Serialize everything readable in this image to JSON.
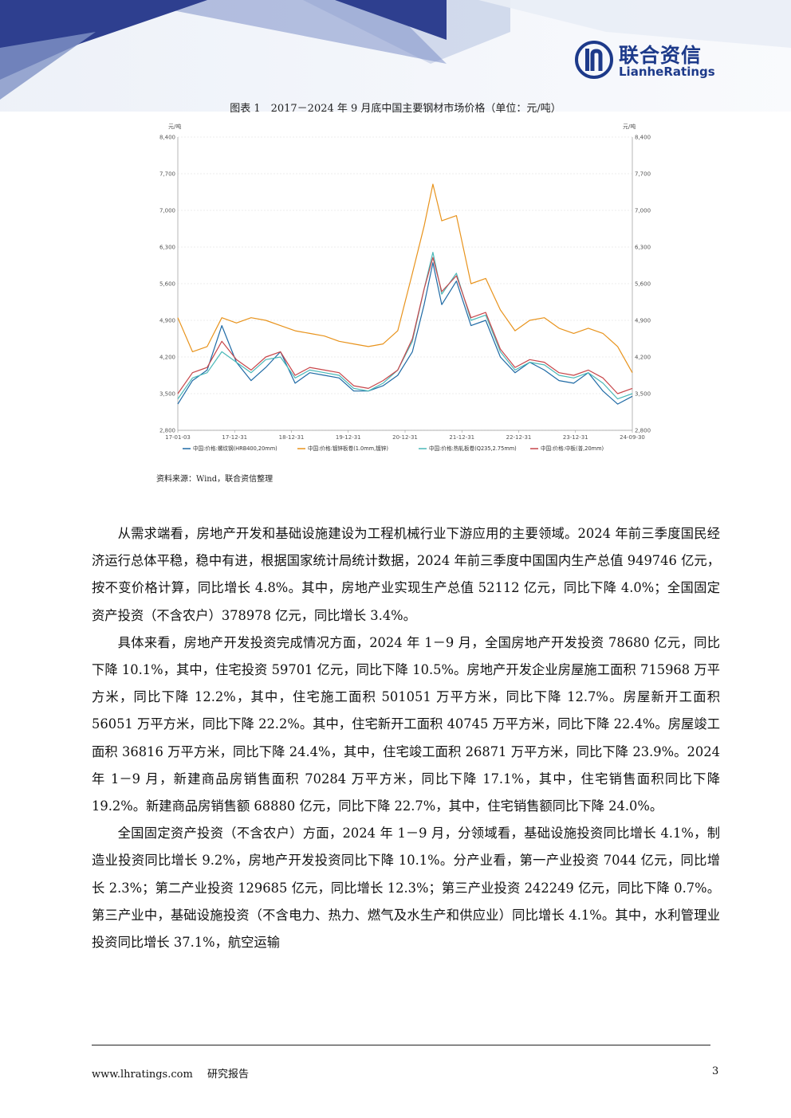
{
  "header": {
    "logo_cn": "联合资信",
    "logo_en": "LianheRatings"
  },
  "figure": {
    "title": "图表 1　2017－2024 年 9 月底中国主要钢材市场价格（单位：元/吨）",
    "source": "资料来源：Wind，联合资信整理"
  },
  "chart_data": {
    "type": "line",
    "y_unit_left": "元/吨",
    "y_unit_right": "元/吨",
    "ylim": [
      2800,
      8400
    ],
    "yticks": [
      "2,800",
      "3,500",
      "4,200",
      "4,900",
      "5,600",
      "6,300",
      "7,000",
      "7,700",
      "8,400"
    ],
    "xticks": [
      "17-01-03",
      "17-12-31",
      "18-12-31",
      "19-12-31",
      "20-12-31",
      "21-12-31",
      "22-12-31",
      "23-12-31",
      "24-09-30"
    ],
    "x": [
      2017.0,
      2017.25,
      2017.5,
      2017.75,
      2018.0,
      2018.25,
      2018.5,
      2018.75,
      2019.0,
      2019.25,
      2019.5,
      2019.75,
      2020.0,
      2020.25,
      2020.5,
      2020.75,
      2021.0,
      2021.2,
      2021.35,
      2021.5,
      2021.75,
      2022.0,
      2022.25,
      2022.5,
      2022.75,
      2023.0,
      2023.25,
      2023.5,
      2023.75,
      2024.0,
      2024.25,
      2024.5,
      2024.75
    ],
    "grid": true,
    "legend_position": "bottom",
    "series": [
      {
        "name": "中国:价格:螺纹钢(HRB400,20mm)",
        "color": "#1f6aa5",
        "values": [
          3300,
          3750,
          3950,
          4800,
          4100,
          3750,
          4000,
          4300,
          3700,
          3900,
          3850,
          3800,
          3550,
          3550,
          3650,
          3850,
          4300,
          5200,
          6000,
          5200,
          5650,
          4800,
          4900,
          4200,
          3900,
          4100,
          3950,
          3750,
          3700,
          3900,
          3550,
          3300,
          3450
        ]
      },
      {
        "name": "中国:价格:镀锌板卷(1.0mm,镀锌)",
        "color": "#e8931c",
        "values": [
          4950,
          4300,
          4400,
          4950,
          4850,
          4950,
          4900,
          4800,
          4700,
          4650,
          4600,
          4500,
          4450,
          4400,
          4450,
          4700,
          5800,
          6700,
          7500,
          6800,
          6900,
          5600,
          5700,
          5100,
          4700,
          4900,
          4950,
          4750,
          4650,
          4750,
          4650,
          4400,
          3900
        ]
      },
      {
        "name": "中国:价格:热轧板卷(Q235,2.75mm)",
        "color": "#4ab8b8",
        "values": [
          3400,
          3800,
          3900,
          4300,
          4100,
          3900,
          4150,
          4200,
          3800,
          3950,
          3900,
          3850,
          3600,
          3550,
          3700,
          3950,
          4500,
          5500,
          6200,
          5400,
          5800,
          4900,
          5000,
          4300,
          3950,
          4100,
          4050,
          3850,
          3800,
          3900,
          3700,
          3400,
          3500
        ]
      },
      {
        "name": "中国:价格:中板(普,20mm)",
        "color": "#c7464a",
        "values": [
          3500,
          3900,
          4000,
          4500,
          4150,
          3950,
          4200,
          4300,
          3850,
          4000,
          3950,
          3900,
          3650,
          3600,
          3750,
          3950,
          4550,
          5500,
          6100,
          5450,
          5750,
          4950,
          5050,
          4350,
          4000,
          4150,
          4100,
          3900,
          3850,
          3950,
          3800,
          3500,
          3600
        ]
      }
    ]
  },
  "body": {
    "paragraphs": [
      "从需求端看，房地产开发和基础设施建设为工程机械行业下游应用的主要领域。2024 年前三季度国民经济运行总体平稳，稳中有进，根据国家统计局统计数据，2024 年前三季度中国国内生产总值 949746 亿元，按不变价格计算，同比增长 4.8%。其中，房地产业实现生产总值 52112 亿元，同比下降 4.0%；全国固定资产投资（不含农户）378978 亿元，同比增长 3.4%。",
      "具体来看，房地产开发投资完成情况方面，2024 年 1－9 月，全国房地产开发投资 78680 亿元，同比下降 10.1%，其中，住宅投资 59701 亿元，同比下降 10.5%。房地产开发企业房屋施工面积 715968 万平方米，同比下降 12.2%，其中，住宅施工面积 501051 万平方米，同比下降 12.7%。房屋新开工面积 56051 万平方米，同比下降 22.2%。其中，住宅新开工面积 40745 万平方米，同比下降 22.4%。房屋竣工面积 36816 万平方米，同比下降 24.4%，其中，住宅竣工面积 26871 万平方米，同比下降 23.9%。2024 年 1－9 月，新建商品房销售面积 70284 万平方米，同比下降 17.1%，其中，住宅销售面积同比下降 19.2%。新建商品房销售额 68880 亿元，同比下降 22.7%，其中，住宅销售额同比下降 24.0%。",
      "全国固定资产投资（不含农户）方面，2024 年 1－9 月，分领域看，基础设施投资同比增长 4.1%，制造业投资同比增长 9.2%，房地产开发投资同比下降 10.1%。分产业看，第一产业投资 7044 亿元，同比增长 2.3%；第二产业投资 129685 亿元，同比增长 12.3%；第三产业投资 242249 亿元，同比下降 0.7%。第三产业中，基础设施投资（不含电力、热力、燃气及水生产和供应业）同比增长 4.1%。其中，水利管理业投资同比增长 37.1%，航空运输"
    ]
  },
  "footer": {
    "url": "www.lhratings.com",
    "label": "研究报告",
    "page": "3"
  }
}
